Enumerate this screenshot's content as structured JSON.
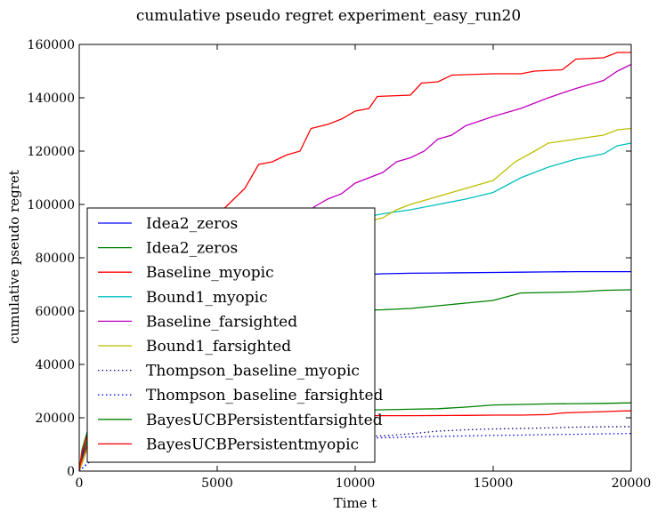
{
  "chart_data": {
    "type": "line",
    "title": "cumulative pseudo regret experiment_easy_run20",
    "xlabel": "Time t",
    "ylabel": "cumulative pseudo regret",
    "xlim": [
      0,
      20000
    ],
    "ylim": [
      0,
      160000
    ],
    "xticks": [
      "0",
      "5000",
      "10000",
      "15000",
      "20000"
    ],
    "yticks": [
      "0",
      "20000",
      "40000",
      "60000",
      "80000",
      "100000",
      "120000",
      "140000",
      "160000"
    ],
    "grid": false,
    "legend_position": "lower-left",
    "series": [
      {
        "name": "Idea2_zeros",
        "color": "#0000ff",
        "dash": "solid",
        "points": [
          [
            0,
            0
          ],
          [
            100,
            5000
          ],
          [
            300,
            15000
          ],
          [
            600,
            26000
          ],
          [
            1000,
            37000
          ],
          [
            1500,
            45000
          ],
          [
            2000,
            52000
          ],
          [
            3000,
            60000
          ],
          [
            4000,
            64000
          ],
          [
            5000,
            67000
          ],
          [
            6000,
            69000
          ],
          [
            7000,
            70500
          ],
          [
            8000,
            71500
          ],
          [
            9000,
            72500
          ],
          [
            10000,
            73500
          ],
          [
            11000,
            74000
          ],
          [
            12000,
            74200
          ],
          [
            13000,
            74300
          ],
          [
            14000,
            74400
          ],
          [
            15000,
            74500
          ],
          [
            16000,
            74600
          ],
          [
            17000,
            74700
          ],
          [
            18000,
            74800
          ],
          [
            19000,
            74800
          ],
          [
            20000,
            74800
          ]
        ]
      },
      {
        "name": "Idea2_zeros",
        "color": "#008000",
        "dash": "solid",
        "points": [
          [
            0,
            0
          ],
          [
            100,
            4000
          ],
          [
            300,
            12000
          ],
          [
            600,
            22000
          ],
          [
            1000,
            32000
          ],
          [
            1500,
            40000
          ],
          [
            2000,
            45000
          ],
          [
            3000,
            51000
          ],
          [
            4000,
            54500
          ],
          [
            5000,
            56500
          ],
          [
            6000,
            57500
          ],
          [
            7000,
            58500
          ],
          [
            8000,
            59500
          ],
          [
            9000,
            60000
          ],
          [
            10000,
            60300
          ],
          [
            11000,
            60500
          ],
          [
            12000,
            61000
          ],
          [
            13000,
            62000
          ],
          [
            14000,
            63000
          ],
          [
            15000,
            64000
          ],
          [
            16000,
            66800
          ],
          [
            17000,
            67000
          ],
          [
            18000,
            67200
          ],
          [
            19000,
            67800
          ],
          [
            20000,
            68000
          ]
        ]
      },
      {
        "name": "Baseline_myopic",
        "color": "#ff0000",
        "dash": "solid",
        "points": [
          [
            0,
            0
          ],
          [
            200,
            7000
          ],
          [
            500,
            16000
          ],
          [
            1000,
            28000
          ],
          [
            1500,
            38000
          ],
          [
            2000,
            48000
          ],
          [
            2500,
            57000
          ],
          [
            3000,
            66000
          ],
          [
            3500,
            74000
          ],
          [
            4000,
            82000
          ],
          [
            4500,
            89000
          ],
          [
            5000,
            96000
          ],
          [
            5500,
            101000
          ],
          [
            6000,
            106000
          ],
          [
            6500,
            115000
          ],
          [
            7000,
            116000
          ],
          [
            7500,
            118500
          ],
          [
            8000,
            120000
          ],
          [
            8400,
            128500
          ],
          [
            9000,
            130000
          ],
          [
            9500,
            132000
          ],
          [
            10000,
            135000
          ],
          [
            10500,
            136000
          ],
          [
            10800,
            140500
          ],
          [
            12000,
            141000
          ],
          [
            12400,
            145500
          ],
          [
            13000,
            146000
          ],
          [
            13500,
            148500
          ],
          [
            15000,
            149000
          ],
          [
            16000,
            149000
          ],
          [
            16500,
            150000
          ],
          [
            17500,
            150500
          ],
          [
            18000,
            154500
          ],
          [
            19000,
            155000
          ],
          [
            19500,
            157000
          ],
          [
            20000,
            157000
          ]
        ]
      },
      {
        "name": "Bound1_myopic",
        "color": "#00bfbf",
        "dash": "solid",
        "points": [
          [
            0,
            0
          ],
          [
            200,
            6000
          ],
          [
            500,
            14000
          ],
          [
            1000,
            25000
          ],
          [
            2000,
            42000
          ],
          [
            3000,
            56000
          ],
          [
            4000,
            66000
          ],
          [
            5000,
            74000
          ],
          [
            6000,
            80000
          ],
          [
            7000,
            86000
          ],
          [
            8000,
            90000
          ],
          [
            9000,
            92500
          ],
          [
            10000,
            94500
          ],
          [
            11000,
            96500
          ],
          [
            12000,
            98000
          ],
          [
            13000,
            100000
          ],
          [
            14000,
            102000
          ],
          [
            15000,
            104500
          ],
          [
            16000,
            110000
          ],
          [
            17000,
            114000
          ],
          [
            18000,
            117000
          ],
          [
            19000,
            119000
          ],
          [
            19500,
            122000
          ],
          [
            20000,
            123000
          ]
        ]
      },
      {
        "name": "Baseline_farsighted",
        "color": "#bf00bf",
        "dash": "solid",
        "points": [
          [
            0,
            0
          ],
          [
            200,
            6000
          ],
          [
            500,
            14000
          ],
          [
            1000,
            25000
          ],
          [
            2000,
            42000
          ],
          [
            3000,
            56000
          ],
          [
            4000,
            66000
          ],
          [
            5000,
            75000
          ],
          [
            6000,
            81000
          ],
          [
            7000,
            88000
          ],
          [
            8000,
            94000
          ],
          [
            8500,
            99000
          ],
          [
            9000,
            102000
          ],
          [
            9500,
            104000
          ],
          [
            10000,
            108000
          ],
          [
            11000,
            112000
          ],
          [
            11500,
            116000
          ],
          [
            12000,
            117500
          ],
          [
            12500,
            120000
          ],
          [
            13000,
            124500
          ],
          [
            13500,
            126000
          ],
          [
            14000,
            129500
          ],
          [
            15000,
            133000
          ],
          [
            16000,
            136000
          ],
          [
            17000,
            140000
          ],
          [
            18000,
            143500
          ],
          [
            19000,
            146500
          ],
          [
            19500,
            150000
          ],
          [
            20000,
            152500
          ]
        ]
      },
      {
        "name": "Bound1_farsighted",
        "color": "#bfbf00",
        "dash": "solid",
        "points": [
          [
            0,
            0
          ],
          [
            200,
            6000
          ],
          [
            500,
            14000
          ],
          [
            1000,
            25000
          ],
          [
            2000,
            42000
          ],
          [
            3000,
            56000
          ],
          [
            4000,
            66000
          ],
          [
            5000,
            74000
          ],
          [
            6000,
            80500
          ],
          [
            7000,
            86000
          ],
          [
            8000,
            89000
          ],
          [
            9000,
            91000
          ],
          [
            10000,
            92500
          ],
          [
            11000,
            95000
          ],
          [
            11500,
            98000
          ],
          [
            12000,
            100000
          ],
          [
            13000,
            103000
          ],
          [
            14000,
            106000
          ],
          [
            15000,
            109000
          ],
          [
            15800,
            116000
          ],
          [
            16500,
            120000
          ],
          [
            17000,
            123000
          ],
          [
            18000,
            124500
          ],
          [
            19000,
            126000
          ],
          [
            19500,
            128000
          ],
          [
            20000,
            128500
          ]
        ]
      },
      {
        "name": "Thompson_baseline_myopic",
        "color": "#000080",
        "dash": "dotted",
        "points": [
          [
            0,
            0
          ],
          [
            300,
            3000
          ],
          [
            700,
            6500
          ],
          [
            1500,
            8500
          ],
          [
            3000,
            10000
          ],
          [
            5000,
            11200
          ],
          [
            7000,
            12000
          ],
          [
            9000,
            12600
          ],
          [
            10000,
            13000
          ],
          [
            11000,
            13200
          ],
          [
            12000,
            14000
          ],
          [
            13000,
            15000
          ],
          [
            14000,
            15500
          ],
          [
            15000,
            15800
          ],
          [
            16000,
            16000
          ],
          [
            17000,
            16200
          ],
          [
            18000,
            16500
          ],
          [
            19000,
            16600
          ],
          [
            20000,
            16700
          ]
        ]
      },
      {
        "name": "Thompson_baseline_farsighted",
        "color": "#0000ff",
        "dash": "dotted",
        "points": [
          [
            0,
            0
          ],
          [
            300,
            2800
          ],
          [
            700,
            6000
          ],
          [
            1500,
            8000
          ],
          [
            3000,
            9500
          ],
          [
            5000,
            10500
          ],
          [
            7000,
            11200
          ],
          [
            9000,
            11800
          ],
          [
            10000,
            12200
          ],
          [
            11000,
            12500
          ],
          [
            12000,
            12800
          ],
          [
            13000,
            13000
          ],
          [
            14000,
            13200
          ],
          [
            15000,
            13400
          ],
          [
            16000,
            13500
          ],
          [
            17000,
            13700
          ],
          [
            18000,
            13800
          ],
          [
            19000,
            14000
          ],
          [
            20000,
            14100
          ]
        ]
      },
      {
        "name": "BayesUCBPersistentfarsighted",
        "color": "#008000",
        "dash": "solid",
        "points": [
          [
            0,
            0
          ],
          [
            100,
            8000
          ],
          [
            300,
            15000
          ],
          [
            600,
            18500
          ],
          [
            1000,
            20000
          ],
          [
            2000,
            21000
          ],
          [
            3000,
            21500
          ],
          [
            5000,
            22000
          ],
          [
            7000,
            22300
          ],
          [
            9000,
            22600
          ],
          [
            10000,
            22800
          ],
          [
            11000,
            23000
          ],
          [
            12000,
            23200
          ],
          [
            13000,
            23400
          ],
          [
            14000,
            24000
          ],
          [
            15000,
            24800
          ],
          [
            16000,
            25000
          ],
          [
            17000,
            25200
          ],
          [
            18000,
            25300
          ],
          [
            19000,
            25400
          ],
          [
            20000,
            25600
          ]
        ]
      },
      {
        "name": "BayesUCBPersistentmyopic",
        "color": "#ff0000",
        "dash": "solid",
        "points": [
          [
            0,
            0
          ],
          [
            100,
            7000
          ],
          [
            300,
            13500
          ],
          [
            600,
            17000
          ],
          [
            1000,
            18500
          ],
          [
            2000,
            19500
          ],
          [
            3000,
            20000
          ],
          [
            5000,
            20300
          ],
          [
            7000,
            20500
          ],
          [
            9000,
            20700
          ],
          [
            10000,
            20800
          ],
          [
            12000,
            20800
          ],
          [
            14000,
            20900
          ],
          [
            15000,
            21000
          ],
          [
            16000,
            21000
          ],
          [
            17000,
            21200
          ],
          [
            17500,
            21800
          ],
          [
            18000,
            22000
          ],
          [
            19000,
            22300
          ],
          [
            19500,
            22500
          ],
          [
            20000,
            22600
          ]
        ]
      }
    ]
  }
}
